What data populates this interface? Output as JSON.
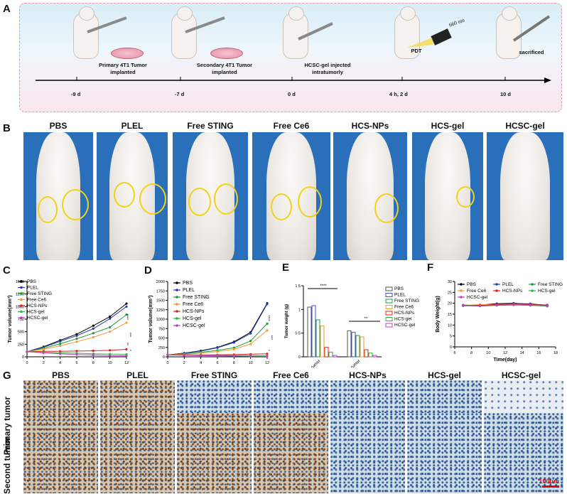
{
  "panel_labels": [
    "A",
    "B",
    "C",
    "D",
    "E",
    "F",
    "G"
  ],
  "timeline": {
    "events": [
      {
        "label_line1": "Primary 4T1 Tumor",
        "label_line2": "implanted",
        "day": "-9 d"
      },
      {
        "label_line1": "Secondary 4T1 Tumor",
        "label_line2": "implanted",
        "day": "-7 d"
      },
      {
        "label_line1": "HCSC-gel injected",
        "label_line2": "intratumorly",
        "day": "0 d"
      },
      {
        "label_line1": "PDT",
        "label_line2": "",
        "day": "4 h, 2 d"
      },
      {
        "label_line1": "sacrificed",
        "label_line2": "",
        "day": "10 d"
      }
    ],
    "laser": "660 nm"
  },
  "groups": [
    "PBS",
    "PLEL",
    "Free STING",
    "Free Ce6",
    "HCS-NPs",
    "HCS-gel",
    "HCSC-gel"
  ],
  "histology": {
    "row_labels": [
      "Primary tumor",
      "Second tumor"
    ],
    "scale_bar": "100μm"
  },
  "chart_data": [
    {
      "panel": "C",
      "type": "line",
      "xlabel": "Time(day)",
      "ylabel": "Tumor volume(mm³)",
      "x": [
        0,
        2,
        4,
        6,
        8,
        10,
        12
      ],
      "xlim": [
        0,
        12
      ],
      "ylim": [
        0,
        1500
      ],
      "yticks": [
        0,
        250,
        500,
        750,
        1000,
        1250,
        1500
      ],
      "series": [
        {
          "name": "PBS",
          "color": "#000000",
          "values": [
            100,
            200,
            330,
            450,
            620,
            800,
            1060
          ]
        },
        {
          "name": "PLEL",
          "color": "#1f3fb5",
          "values": [
            100,
            190,
            310,
            420,
            560,
            760,
            1000
          ]
        },
        {
          "name": "Free STING",
          "color": "#1a9a3c",
          "values": [
            100,
            170,
            260,
            360,
            470,
            590,
            840
          ]
        },
        {
          "name": "Free Ce6",
          "color": "#f29a2e",
          "values": [
            100,
            150,
            220,
            300,
            390,
            500,
            680
          ]
        },
        {
          "name": "HCS-NPs",
          "color": "#e02020",
          "values": [
            100,
            110,
            110,
            115,
            120,
            130,
            150
          ]
        },
        {
          "name": "HCS-gel",
          "color": "#2db34a",
          "values": [
            100,
            90,
            80,
            70,
            60,
            55,
            50
          ]
        },
        {
          "name": "HCSC-gel",
          "color": "#c43cc4",
          "values": [
            100,
            80,
            60,
            45,
            35,
            25,
            20
          ]
        }
      ],
      "annotations": [
        "****",
        "***",
        "**",
        "*"
      ]
    },
    {
      "panel": "D",
      "type": "line",
      "xlabel": "Time(day)",
      "ylabel": "Tumor volume(mm³)",
      "x": [
        0,
        2,
        4,
        6,
        8,
        10,
        12
      ],
      "xlim": [
        0,
        12
      ],
      "ylim": [
        0,
        2000
      ],
      "yticks": [
        0,
        250,
        500,
        750,
        1000,
        1250,
        1500,
        1750,
        2000
      ],
      "series": [
        {
          "name": "PBS",
          "color": "#000000",
          "values": [
            50,
            100,
            160,
            250,
            400,
            650,
            1420
          ]
        },
        {
          "name": "PLEL",
          "color": "#1f3fb5",
          "values": [
            50,
            95,
            150,
            240,
            380,
            620,
            1400
          ]
        },
        {
          "name": "Free STING",
          "color": "#1a9a3c",
          "values": [
            50,
            80,
            120,
            170,
            240,
            420,
            880
          ]
        },
        {
          "name": "Free Ce6",
          "color": "#f29a2e",
          "values": [
            50,
            70,
            100,
            140,
            200,
            340,
            700
          ]
        },
        {
          "name": "HCS-NPs",
          "color": "#e02020",
          "values": [
            50,
            55,
            50,
            55,
            60,
            70,
            80
          ]
        },
        {
          "name": "HCS-gel",
          "color": "#2db34a",
          "values": [
            50,
            45,
            40,
            40,
            35,
            35,
            30
          ]
        },
        {
          "name": "HCSC-gel",
          "color": "#c43cc4",
          "values": [
            50,
            40,
            30,
            25,
            20,
            15,
            10
          ]
        }
      ],
      "annotations": [
        "****",
        "***",
        "*"
      ]
    },
    {
      "panel": "E",
      "type": "bar",
      "ylabel": "Tumor weight (g)",
      "ylim": [
        0,
        1.5
      ],
      "yticks": [
        0,
        0.5,
        1.0,
        1.5
      ],
      "categories": [
        "primary tumor",
        "second tumor"
      ],
      "series": [
        {
          "name": "PBS",
          "color": "#555555",
          "values": [
            1.05,
            0.55
          ]
        },
        {
          "name": "PLEL",
          "color": "#3a4fd0",
          "values": [
            1.08,
            0.52
          ]
        },
        {
          "name": "Free STING",
          "color": "#1a9a3c",
          "values": [
            0.78,
            0.45
          ]
        },
        {
          "name": "Free Ce6",
          "color": "#f29a2e",
          "values": [
            0.65,
            0.42
          ]
        },
        {
          "name": "HCS-NPs",
          "color": "#e02020",
          "values": [
            0.2,
            0.15
          ]
        },
        {
          "name": "HCS-gel",
          "color": "#2db34a",
          "values": [
            0.1,
            0.08
          ]
        },
        {
          "name": "HCSC-gel",
          "color": "#c43cc4",
          "values": [
            0.03,
            0.03
          ]
        }
      ],
      "annotations": [
        "****",
        "**"
      ]
    },
    {
      "panel": "F",
      "type": "line",
      "xlabel": "Time(day)",
      "ylabel": "Body Weight(g)",
      "x": [
        7,
        9,
        11,
        13,
        15,
        17
      ],
      "xlim": [
        6,
        18
      ],
      "ylim": [
        0,
        30
      ],
      "xticks": [
        6,
        8,
        10,
        12,
        14,
        16,
        18
      ],
      "yticks": [
        0,
        5,
        10,
        15,
        20,
        25,
        30
      ],
      "series": [
        {
          "name": "PBS",
          "color": "#000000",
          "values": [
            19.0,
            19.2,
            19.8,
            20.0,
            19.6,
            19.2
          ]
        },
        {
          "name": "PLEL",
          "color": "#1f3fb5",
          "values": [
            19.2,
            19.0,
            19.6,
            19.8,
            19.8,
            19.0
          ]
        },
        {
          "name": "Free STING",
          "color": "#1a9a3c",
          "values": [
            18.8,
            18.9,
            19.2,
            19.4,
            19.0,
            18.8
          ]
        },
        {
          "name": "Free Ce6",
          "color": "#f29a2e",
          "values": [
            19.0,
            19.4,
            19.4,
            19.6,
            19.4,
            19.0
          ]
        },
        {
          "name": "HCS-NPs",
          "color": "#e02020",
          "values": [
            19.1,
            19.0,
            19.5,
            19.7,
            19.5,
            19.1
          ]
        },
        {
          "name": "HCS-gel",
          "color": "#2db34a",
          "values": [
            18.9,
            18.7,
            19.0,
            19.2,
            19.1,
            18.6
          ]
        },
        {
          "name": "HCSC-gel",
          "color": "#c43cc4",
          "values": [
            19.0,
            18.8,
            19.1,
            19.3,
            19.2,
            18.9
          ]
        }
      ]
    }
  ]
}
